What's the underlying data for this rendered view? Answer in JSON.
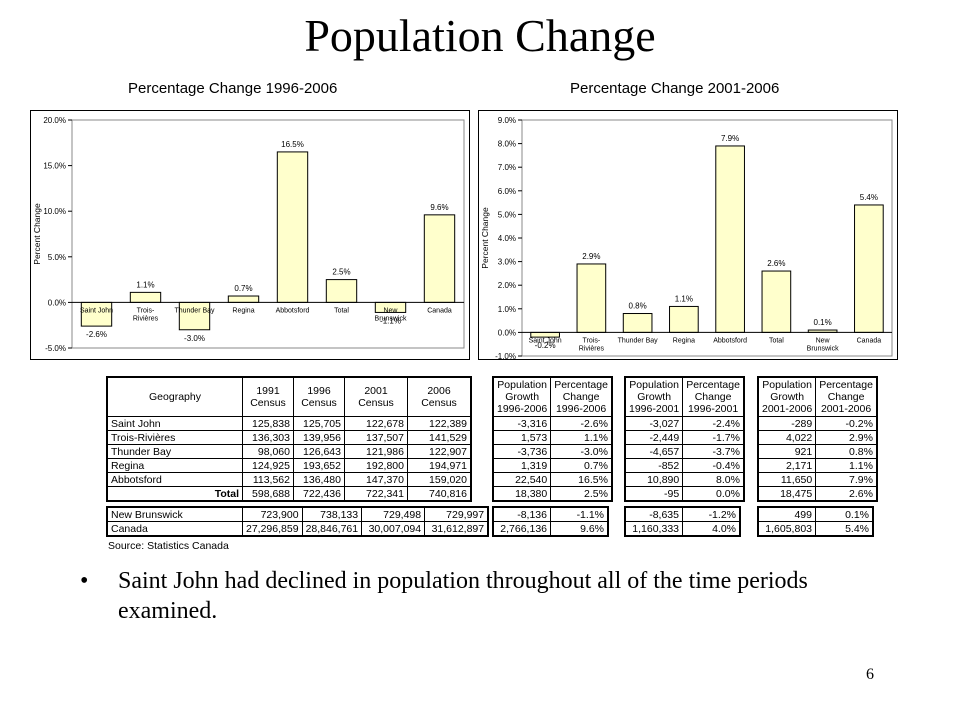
{
  "slide": {
    "title": "Population Change",
    "bullet": "Saint John had declined in population throughout all of the time periods examined.",
    "page_number": "6"
  },
  "chart_data": [
    {
      "type": "bar",
      "title": "Percentage Change  1996-2006",
      "ylabel": "Percent Change",
      "categories": [
        "Saint John",
        "Trois-Rivières",
        "Thunder Bay",
        "Regina",
        "Abbotsford",
        "Total",
        "New Brunswick",
        "Canada"
      ],
      "category_labels": [
        "Saint John",
        "Trois-Rivières",
        "Thunder Bay",
        "Regina",
        "Abbotsford",
        "Total",
        "New Brunswick",
        "Canada"
      ],
      "values": [
        -2.6,
        1.1,
        -3.0,
        0.7,
        16.5,
        2.5,
        -1.1,
        9.6
      ],
      "data_labels": [
        "-2.6%",
        "1.1%",
        "-3.0%",
        "0.7%",
        "16.5%",
        "2.5%",
        "-1.1%",
        "9.6%"
      ],
      "ylim": [
        -5,
        20
      ],
      "yticks": [
        20,
        15,
        10,
        5,
        0,
        -5
      ],
      "ytick_labels": [
        "20.0%",
        "15.0%",
        "10.0%",
        "5.0%",
        "0.0%",
        "-5.0%"
      ],
      "bar_color": "#ffffcc",
      "grid": false
    },
    {
      "type": "bar",
      "title": "Percentage Change 2001-2006",
      "ylabel": "Percent Change",
      "categories": [
        "Saint John",
        "Trois-Rivières",
        "Thunder Bay",
        "Regina",
        "Abbotsford",
        "Total",
        "New Brunswick",
        "Canada"
      ],
      "category_labels": [
        "Saint John",
        "Trois-Rivières",
        "Thunder Bay",
        "Regina",
        "Abbotsford",
        "Total",
        "New Brunswick",
        "Canada"
      ],
      "values": [
        -0.2,
        2.9,
        0.8,
        1.1,
        7.9,
        2.6,
        0.1,
        5.4
      ],
      "data_labels": [
        "-0.2%",
        "2.9%",
        "0.8%",
        "1.1%",
        "7.9%",
        "2.6%",
        "0.1%",
        "5.4%"
      ],
      "ylim": [
        -1,
        9
      ],
      "yticks": [
        9,
        8,
        7,
        6,
        5,
        4,
        3,
        2,
        1,
        0,
        -1
      ],
      "ytick_labels": [
        "9.0%",
        "8.0%",
        "7.0%",
        "6.0%",
        "5.0%",
        "4.0%",
        "3.0%",
        "2.0%",
        "1.0%",
        "0.0%",
        "-1.0%"
      ],
      "bar_color": "#ffffcc",
      "grid": false
    }
  ],
  "table_census": {
    "headers": [
      [
        "Geography"
      ],
      [
        "1991",
        "Census"
      ],
      [
        "1996",
        "Census"
      ],
      [
        "2001",
        "Census"
      ],
      [
        "2006",
        "Census"
      ]
    ],
    "rows": [
      [
        "Saint John",
        "125,838",
        "125,705",
        "122,678",
        "122,389"
      ],
      [
        "Trois-Rivières",
        "136,303",
        "139,956",
        "137,507",
        "141,529"
      ],
      [
        "Thunder Bay",
        "98,060",
        "126,643",
        "121,986",
        "122,907"
      ],
      [
        "Regina",
        "124,925",
        "193,652",
        "192,800",
        "194,971"
      ],
      [
        "Abbotsford",
        "113,562",
        "136,480",
        "147,370",
        "159,020"
      ],
      [
        "Total",
        "598,688",
        "722,436",
        "722,341",
        "740,816"
      ]
    ],
    "rows2": [
      [
        "New Brunswick",
        "723,900",
        "738,133",
        "729,498",
        "729,997"
      ],
      [
        "Canada",
        "27,296,859",
        "28,846,761",
        "30,007,094",
        "31,612,897"
      ]
    ]
  },
  "table_groups": [
    {
      "headers": [
        [
          "Population",
          "Growth",
          "1996-2006"
        ],
        [
          "Percentage",
          "Change",
          "1996-2006"
        ]
      ],
      "rows": [
        [
          "-3,316",
          "-2.6%"
        ],
        [
          "1,573",
          "1.1%"
        ],
        [
          "-3,736",
          "-3.0%"
        ],
        [
          "1,319",
          "0.7%"
        ],
        [
          "22,540",
          "16.5%"
        ],
        [
          "18,380",
          "2.5%"
        ]
      ],
      "rows2": [
        [
          "-8,136",
          "-1.1%"
        ],
        [
          "2,766,136",
          "9.6%"
        ]
      ]
    },
    {
      "headers": [
        [
          "Population",
          "Growth",
          "1996-2001"
        ],
        [
          "Percentage",
          "Change",
          "1996-2001"
        ]
      ],
      "rows": [
        [
          "-3,027",
          "-2.4%"
        ],
        [
          "-2,449",
          "-1.7%"
        ],
        [
          "-4,657",
          "-3.7%"
        ],
        [
          "-852",
          "-0.4%"
        ],
        [
          "10,890",
          "8.0%"
        ],
        [
          "-95",
          "0.0%"
        ]
      ],
      "rows2": [
        [
          "-8,635",
          "-1.2%"
        ],
        [
          "1,160,333",
          "4.0%"
        ]
      ]
    },
    {
      "headers": [
        [
          "Population",
          "Growth",
          "2001-2006"
        ],
        [
          "Percentage",
          "Change",
          "2001-2006"
        ]
      ],
      "rows": [
        [
          "-289",
          "-0.2%"
        ],
        [
          "4,022",
          "2.9%"
        ],
        [
          "921",
          "0.8%"
        ],
        [
          "2,171",
          "1.1%"
        ],
        [
          "11,650",
          "7.9%"
        ],
        [
          "18,475",
          "2.6%"
        ]
      ],
      "rows2": [
        [
          "499",
          "0.1%"
        ],
        [
          "1,605,803",
          "5.4%"
        ]
      ]
    }
  ],
  "source": "Source: Statistics Canada"
}
